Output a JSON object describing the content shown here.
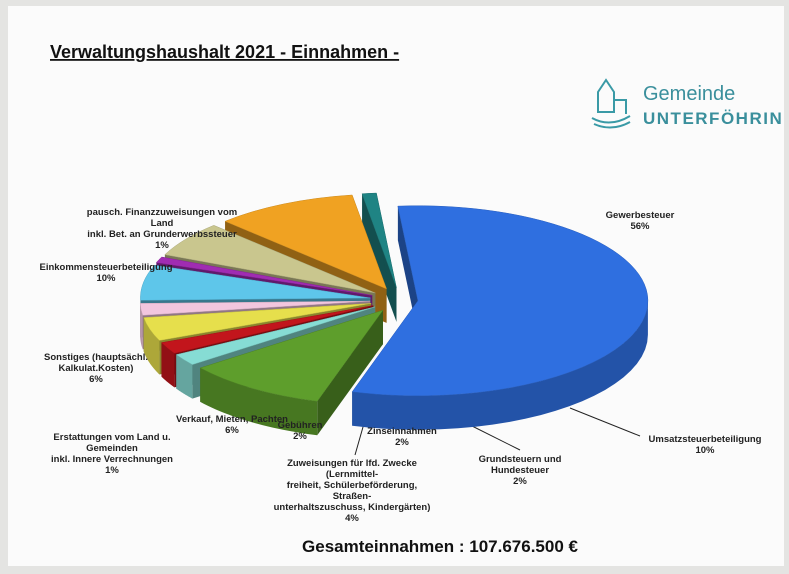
{
  "logo": {
    "line1": "Gemeinde",
    "line2": "UNTERFÖHRIN"
  },
  "chart_data": {
    "type": "pie3d",
    "title": "Verwaltungshaushalt 2021 - Einnahmen -",
    "footer": "Gesamteinnahmen : 107.676.500 €",
    "categories": [
      [
        "Gewerbesteuer"
      ],
      [
        "Umsatzsteuerbeteiligung"
      ],
      [
        "Grundsteuern und",
        "Hundesteuer"
      ],
      [
        "Zinseinnahmen"
      ],
      [
        "Zuweisungen für lfd. Zwecke",
        "(Lernmittel-",
        "freiheit, Schülerbeförderung,",
        "Straßen-",
        "unterhaltszuschuss, Kindergärten)"
      ],
      [
        "Gebühren"
      ],
      [
        "Verkauf, Mieten, Pachten"
      ],
      [
        "Erstattungen vom Land u.",
        "Gemeinden",
        "inkl. Innere Verrechnungen"
      ],
      [
        "Sonstiges (hauptsächl.",
        "Kalkulat.Kosten)"
      ],
      [
        "Einkommensteuerbeteiligung"
      ],
      [
        "pausch. Finanzzuweisungen vom",
        "Land",
        "inkl. Bet. an Grunderwerbssteuer"
      ]
    ],
    "values": [
      56,
      10,
      2,
      2,
      4,
      2,
      6,
      1,
      6,
      10,
      1
    ],
    "value_labels": [
      "56%",
      "10%",
      "2%",
      "2%",
      "4%",
      "2%",
      "6%",
      "1%",
      "6%",
      "10%",
      "1%"
    ],
    "colors": [
      "#2f6fe0",
      "#5e9e2c",
      "#86dcd4",
      "#c2151c",
      "#e6df4c",
      "#f2c6de",
      "#5ec6ea",
      "#a02cb2",
      "#c9c68e",
      "#f0a222",
      "#1f8484"
    ]
  }
}
